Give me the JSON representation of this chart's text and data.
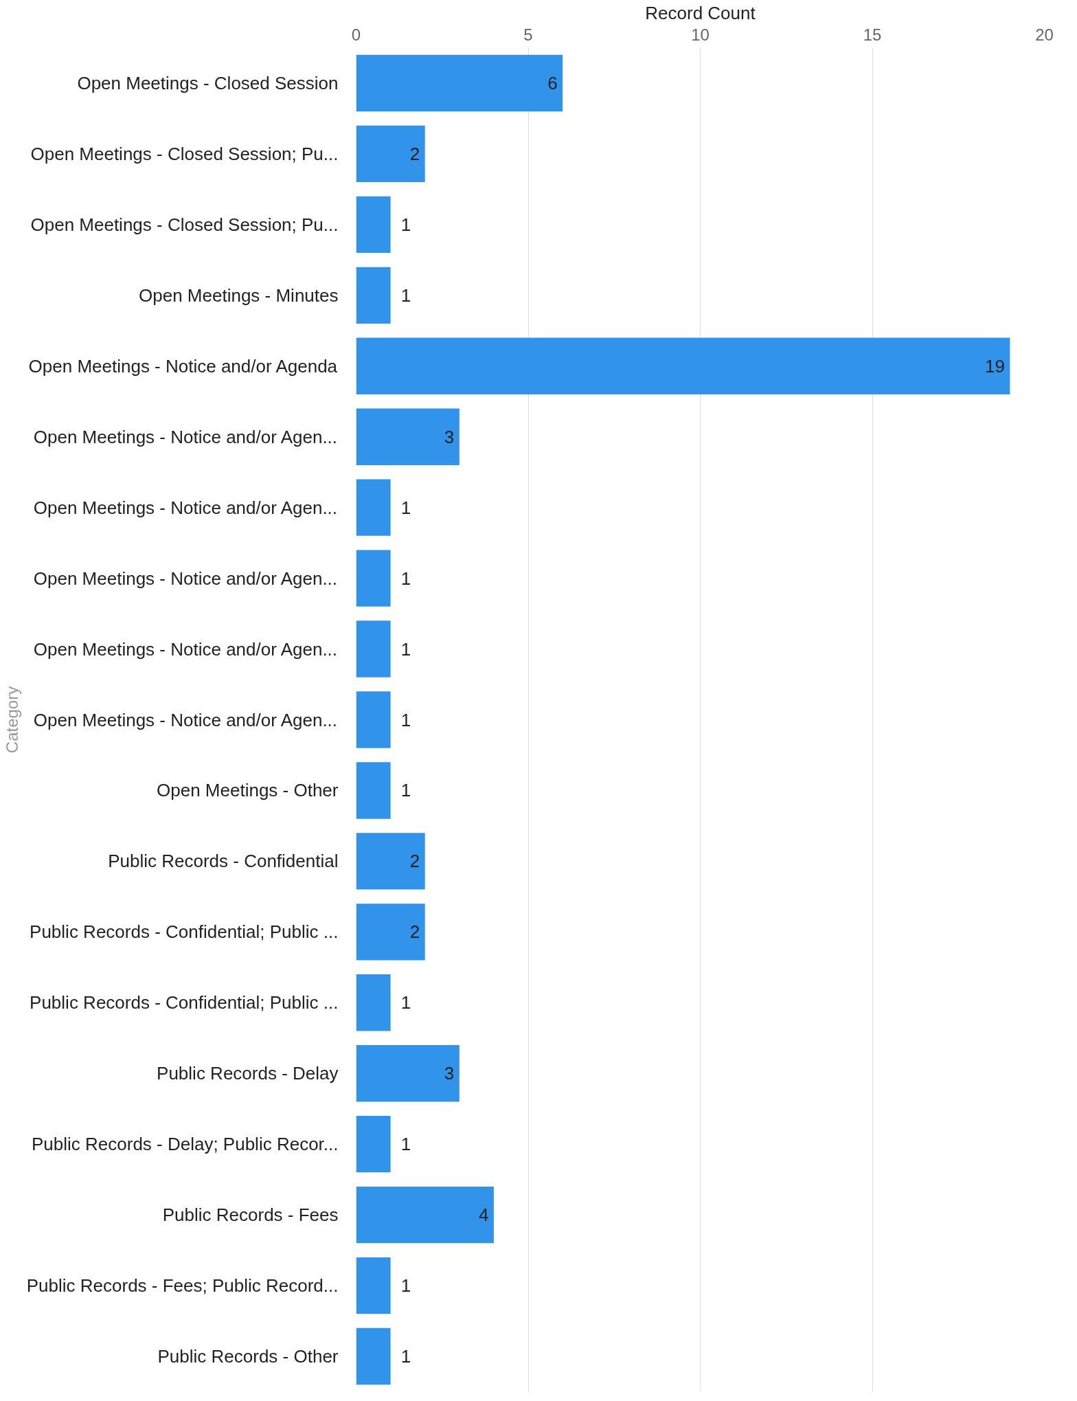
{
  "chart_data": {
    "type": "bar",
    "orientation": "horizontal",
    "xlabel": "Record Count",
    "ylabel": "Category",
    "categories": [
      "Open Meetings - Closed Session",
      "Open Meetings - Closed Session; Pu...",
      "Open Meetings - Closed Session; Pu...",
      "Open Meetings - Minutes",
      "Open Meetings - Notice and/or Agenda",
      "Open Meetings - Notice and/or Agen...",
      "Open Meetings - Notice and/or Agen...",
      "Open Meetings - Notice and/or Agen...",
      "Open Meetings - Notice and/or Agen...",
      "Open Meetings - Notice and/or Agen...",
      "Open Meetings - Other",
      "Public Records - Confidential",
      "Public Records - Confidential; Public ...",
      "Public Records - Confidential; Public ...",
      "Public Records - Delay",
      "Public Records - Delay; Public Recor...",
      "Public Records - Fees",
      "Public Records - Fees; Public Record...",
      "Public Records - Other"
    ],
    "values": [
      6,
      2,
      1,
      1,
      19,
      3,
      1,
      1,
      1,
      1,
      1,
      2,
      2,
      1,
      3,
      1,
      4,
      1,
      1
    ],
    "color": "#3193ea",
    "xlim": [
      0,
      20
    ],
    "xticks": [
      0,
      5,
      10,
      15,
      20
    ],
    "grid": "x",
    "data_labels": true
  }
}
